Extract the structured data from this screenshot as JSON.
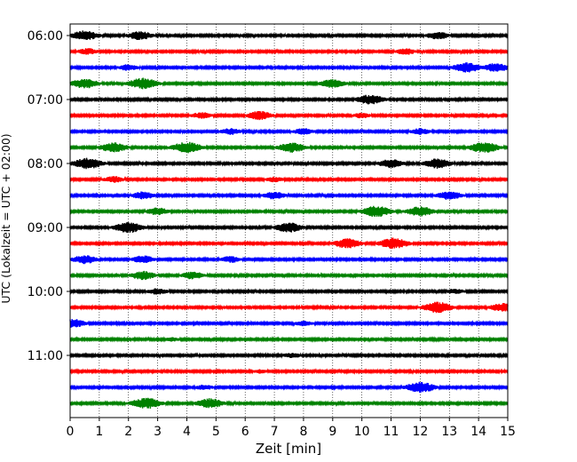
{
  "chart_data": {
    "type": "line",
    "title": "",
    "xlabel": "Zeit  [min]",
    "ylabel": "UTC (Lokalzeit = UTC + 02:00)",
    "xlim": [
      0,
      15
    ],
    "x_ticks": [
      0,
      1,
      2,
      3,
      4,
      5,
      6,
      7,
      8,
      9,
      10,
      11,
      12,
      13,
      14,
      15
    ],
    "y_tick_labels": [
      "06:00",
      "07:00",
      "08:00",
      "09:00",
      "10:00",
      "11:00"
    ],
    "row_minutes": 15,
    "rows": 24,
    "start_time": "06:00",
    "grid": {
      "vertical": "dotted",
      "horizontal": false
    },
    "legend": "none",
    "color_cycle": [
      "#000000",
      "#ff0000",
      "#0000ff",
      "#008000"
    ],
    "traces": [
      {
        "start": "06:00",
        "color": "#000000",
        "events": [
          {
            "t": 0.5,
            "amp": 0.9
          },
          {
            "t": 2.4,
            "amp": 0.8
          },
          {
            "t": 12.6,
            "amp": 0.7
          }
        ]
      },
      {
        "start": "06:15",
        "color": "#ff0000",
        "events": [
          {
            "t": 0.6,
            "amp": 0.6
          },
          {
            "t": 11.5,
            "amp": 0.6
          }
        ]
      },
      {
        "start": "06:30",
        "color": "#0000ff",
        "events": [
          {
            "t": 2.0,
            "amp": 0.6
          },
          {
            "t": 13.6,
            "amp": 0.9
          },
          {
            "t": 14.6,
            "amp": 0.8
          }
        ]
      },
      {
        "start": "06:45",
        "color": "#008000",
        "events": [
          {
            "t": 0.5,
            "amp": 0.9
          },
          {
            "t": 2.5,
            "amp": 1.0
          },
          {
            "t": 9.0,
            "amp": 0.8
          }
        ]
      },
      {
        "start": "07:00",
        "color": "#000000",
        "events": [
          {
            "t": 10.3,
            "amp": 0.9
          }
        ]
      },
      {
        "start": "07:15",
        "color": "#ff0000",
        "events": [
          {
            "t": 4.5,
            "amp": 0.6
          },
          {
            "t": 6.5,
            "amp": 0.8
          },
          {
            "t": 10.0,
            "amp": 0.5
          }
        ]
      },
      {
        "start": "07:30",
        "color": "#0000ff",
        "events": [
          {
            "t": 5.5,
            "amp": 0.6
          },
          {
            "t": 8.0,
            "amp": 0.6
          },
          {
            "t": 12.0,
            "amp": 0.6
          }
        ]
      },
      {
        "start": "07:45",
        "color": "#008000",
        "events": [
          {
            "t": 1.5,
            "amp": 0.9
          },
          {
            "t": 4.0,
            "amp": 1.0
          },
          {
            "t": 7.6,
            "amp": 0.9
          },
          {
            "t": 14.2,
            "amp": 1.0
          }
        ]
      },
      {
        "start": "08:00",
        "color": "#000000",
        "events": [
          {
            "t": 0.6,
            "amp": 1.0
          },
          {
            "t": 11.0,
            "amp": 0.8
          },
          {
            "t": 12.6,
            "amp": 0.9
          }
        ]
      },
      {
        "start": "08:15",
        "color": "#ff0000",
        "events": [
          {
            "t": 1.5,
            "amp": 0.6
          },
          {
            "t": 7.0,
            "amp": 0.5
          }
        ]
      },
      {
        "start": "08:30",
        "color": "#0000ff",
        "events": [
          {
            "t": 2.5,
            "amp": 0.7
          },
          {
            "t": 7.0,
            "amp": 0.7
          },
          {
            "t": 13.0,
            "amp": 0.8
          }
        ]
      },
      {
        "start": "08:45",
        "color": "#008000",
        "events": [
          {
            "t": 3.0,
            "amp": 0.7
          },
          {
            "t": 10.5,
            "amp": 1.0
          },
          {
            "t": 12.0,
            "amp": 0.9
          }
        ]
      },
      {
        "start": "09:00",
        "color": "#000000",
        "events": [
          {
            "t": 2.0,
            "amp": 1.0
          },
          {
            "t": 7.5,
            "amp": 0.9
          }
        ]
      },
      {
        "start": "09:15",
        "color": "#ff0000",
        "events": [
          {
            "t": 9.5,
            "amp": 0.9
          },
          {
            "t": 11.1,
            "amp": 1.0
          }
        ]
      },
      {
        "start": "09:30",
        "color": "#0000ff",
        "events": [
          {
            "t": 0.5,
            "amp": 0.8
          },
          {
            "t": 2.5,
            "amp": 0.7
          },
          {
            "t": 5.5,
            "amp": 0.6
          }
        ]
      },
      {
        "start": "09:45",
        "color": "#008000",
        "events": [
          {
            "t": 2.5,
            "amp": 0.8
          },
          {
            "t": 4.2,
            "amp": 0.7
          }
        ]
      },
      {
        "start": "10:00",
        "color": "#000000",
        "events": [
          {
            "t": 3.0,
            "amp": 0.6
          },
          {
            "t": 13.2,
            "amp": 0.5
          }
        ]
      },
      {
        "start": "10:15",
        "color": "#ff0000",
        "events": [
          {
            "t": 12.6,
            "amp": 1.0
          },
          {
            "t": 14.8,
            "amp": 0.8
          }
        ]
      },
      {
        "start": "10:30",
        "color": "#0000ff",
        "events": [
          {
            "t": 0.1,
            "amp": 0.8
          },
          {
            "t": 8.0,
            "amp": 0.5
          }
        ]
      },
      {
        "start": "10:45",
        "color": "#008000",
        "events": [
          {
            "t": 3.5,
            "amp": 0.4
          }
        ]
      },
      {
        "start": "11:00",
        "color": "#000000",
        "events": [
          {
            "t": 7.6,
            "amp": 0.5
          }
        ]
      },
      {
        "start": "11:15",
        "color": "#ff0000",
        "events": [
          {
            "t": 6.5,
            "amp": 0.4
          }
        ]
      },
      {
        "start": "11:30",
        "color": "#0000ff",
        "events": [
          {
            "t": 4.6,
            "amp": 0.5
          },
          {
            "t": 12.0,
            "amp": 1.0
          }
        ]
      },
      {
        "start": "11:45",
        "color": "#008000",
        "events": [
          {
            "t": 2.6,
            "amp": 1.0
          },
          {
            "t": 4.8,
            "amp": 0.9
          }
        ]
      }
    ]
  }
}
